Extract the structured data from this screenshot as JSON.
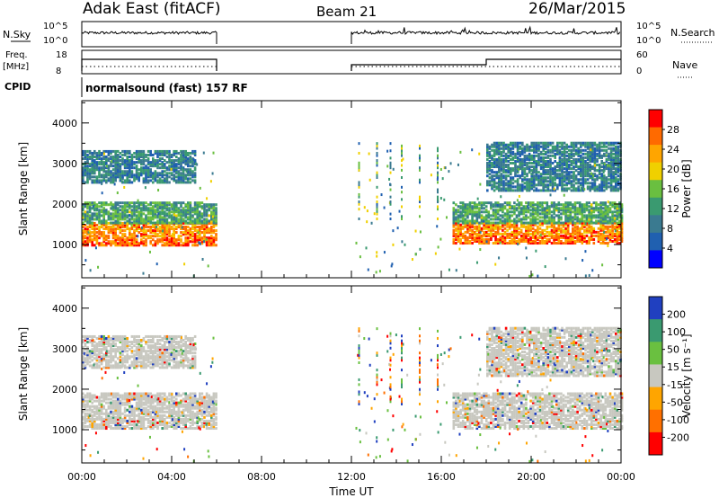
{
  "header": {
    "left": "Adak East (fitACF)",
    "center": "Beam 21",
    "right": "26/Mar/2015"
  },
  "panels": {
    "nsky_label": "N.Sky",
    "nsearch_label": "N.Search",
    "freq_label_1": "Freq.",
    "freq_label_2": "[MHz]",
    "nave_label": "Nave",
    "cpid_label": "CPID",
    "program": "normalsound (fast) 157 RF",
    "nsky_ticks": [
      "10^5",
      "10^0"
    ],
    "freq_ticks": [
      "18",
      "8"
    ],
    "nave_ticks": [
      "60",
      "0"
    ]
  },
  "chart_data": [
    {
      "type": "heatmap",
      "title": "",
      "xlabel": "Time UT",
      "ylabel": "Slant Range [km]",
      "colorbar_label": "Power [dB]",
      "colorbar_ticks": [
        "28",
        "24",
        "20",
        "16",
        "12",
        "8",
        "4"
      ],
      "colorbar_colors": [
        "#ff0000",
        "#ff6a00",
        "#ffa500",
        "#f0d000",
        "#6abf40",
        "#3a9a70",
        "#3a7a90",
        "#2060b0",
        "#0000ff"
      ],
      "x_ticks": [
        "00:00",
        "04:00",
        "08:00",
        "12:00",
        "16:00",
        "20:00",
        "00:00"
      ],
      "x_range_hours": [
        0,
        24
      ],
      "y_ticks": [
        "1000",
        "2000",
        "3000",
        "4000"
      ],
      "y_range_km": [
        180,
        4550
      ],
      "data_gaps_hours": [
        [
          6.0,
          12.0
        ]
      ],
      "echo_regions": [
        {
          "t": [
            0.0,
            6.0
          ],
          "range_km": [
            950,
            1500
          ],
          "level_db": 24
        },
        {
          "t": [
            0.0,
            6.0
          ],
          "range_km": [
            1500,
            2000
          ],
          "level_db": 12
        },
        {
          "t": [
            0.0,
            5.0
          ],
          "range_km": [
            2500,
            3300
          ],
          "level_db": 8
        },
        {
          "t": [
            16.5,
            24.0
          ],
          "range_km": [
            1000,
            1500
          ],
          "level_db": 24
        },
        {
          "t": [
            16.5,
            24.0
          ],
          "range_km": [
            1500,
            2000
          ],
          "level_db": 12
        },
        {
          "t": [
            18.0,
            24.0
          ],
          "range_km": [
            2300,
            3500
          ],
          "level_db": 8
        }
      ]
    },
    {
      "type": "heatmap",
      "title": "",
      "xlabel": "Time UT",
      "ylabel": "Slant Range [km]",
      "colorbar_label": "Velocity [m s⁻¹]",
      "colorbar_ticks": [
        "200",
        "100",
        "50",
        "15",
        "-15",
        "-50",
        "-100",
        "-200"
      ],
      "colorbar_colors": [
        "#2040c0",
        "#3a9a70",
        "#6ac040",
        "#c8c8c0",
        "#ffa500",
        "#ff7000",
        "#ff0000"
      ],
      "x_ticks": [
        "00:00",
        "04:00",
        "08:00",
        "12:00",
        "16:00",
        "20:00",
        "00:00"
      ],
      "x_range_hours": [
        0,
        24
      ],
      "y_ticks": [
        "1000",
        "2000",
        "3000",
        "4000"
      ],
      "y_range_km": [
        180,
        4550
      ],
      "data_gaps_hours": [
        [
          6.0,
          12.0
        ]
      ],
      "echo_regions": [
        {
          "t": [
            0.0,
            6.0
          ],
          "range_km": [
            1000,
            1900
          ],
          "velocity": 0
        },
        {
          "t": [
            0.0,
            5.0
          ],
          "range_km": [
            2500,
            3300
          ],
          "velocity": 0
        },
        {
          "t": [
            16.5,
            24.0
          ],
          "range_km": [
            1000,
            1900
          ],
          "velocity": 0
        },
        {
          "t": [
            18.0,
            24.0
          ],
          "range_km": [
            2300,
            3500
          ],
          "velocity": 0
        }
      ]
    }
  ]
}
